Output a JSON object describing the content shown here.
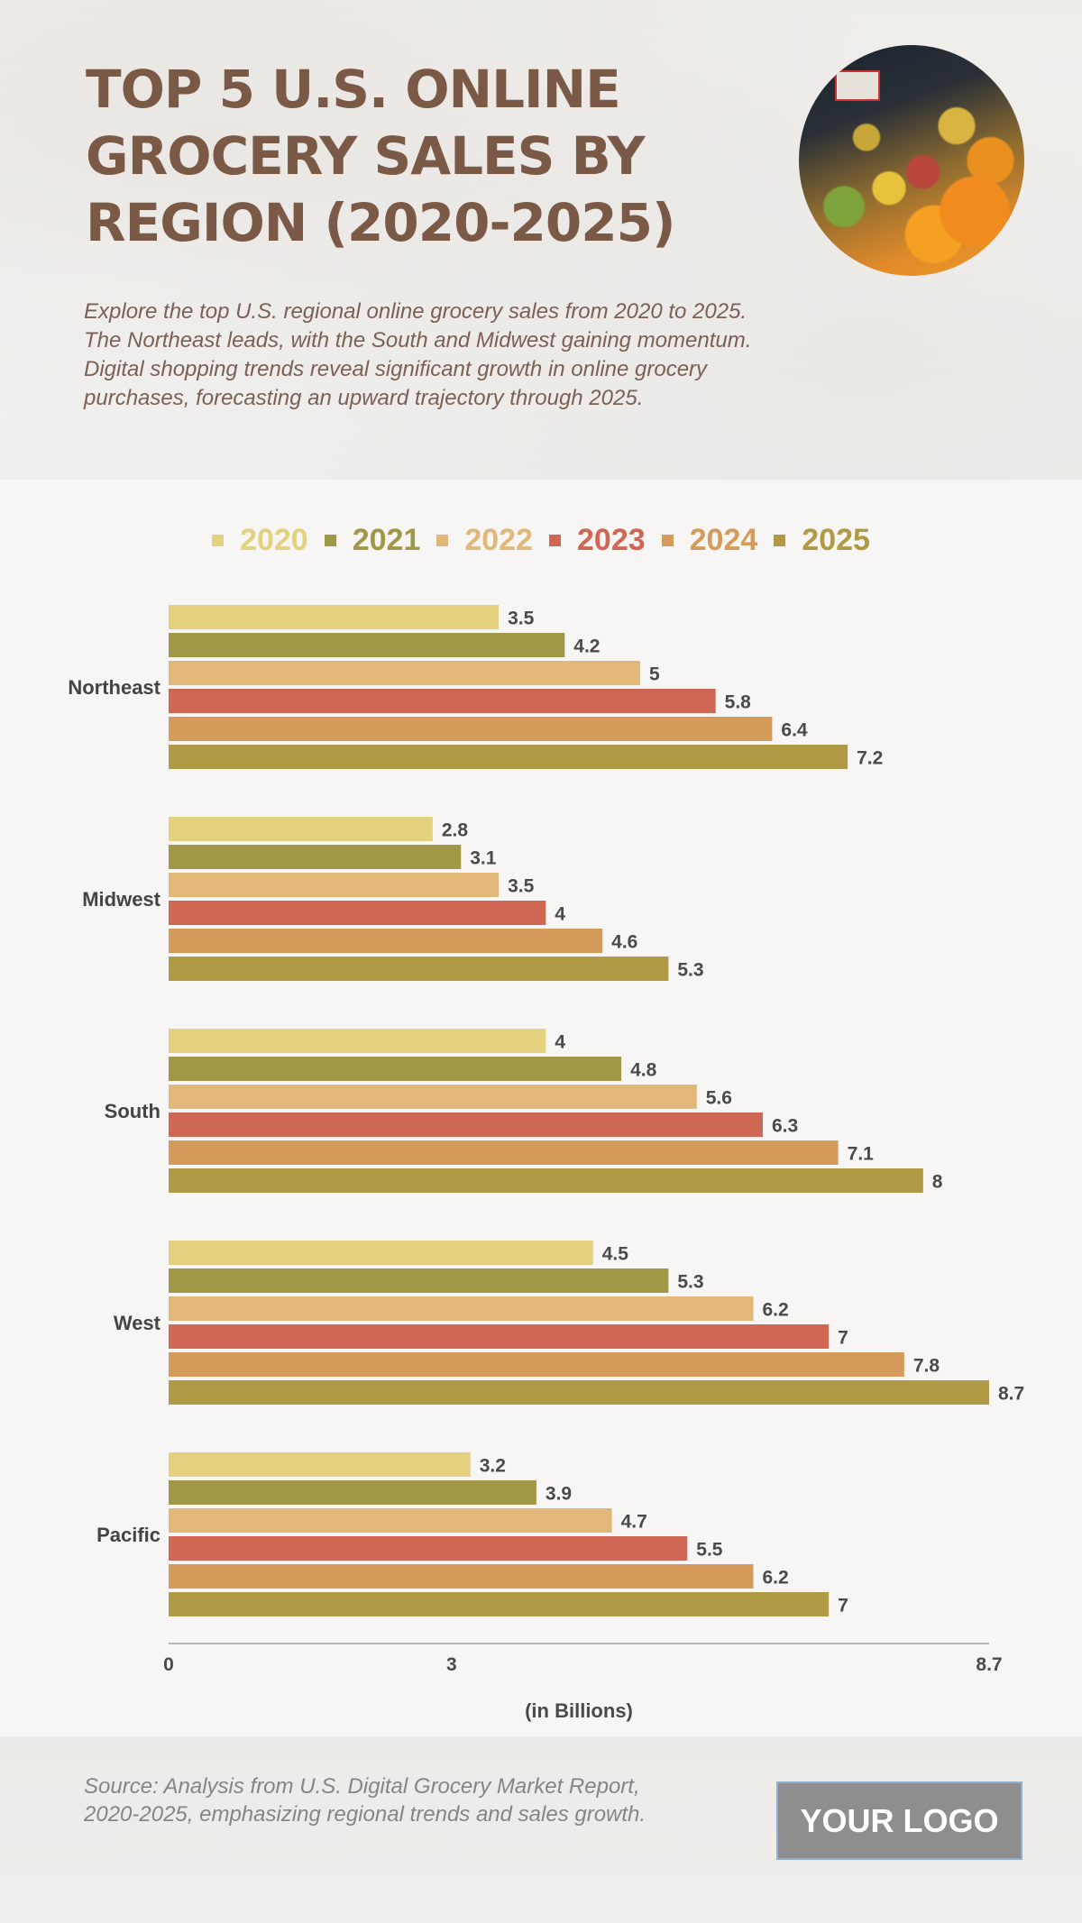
{
  "header": {
    "title": "TOP 5 U.S. ONLINE GROCERY SALES BY REGION (2020-2025)",
    "subtitle": "Explore the top U.S. regional online grocery sales from 2020 to 2025. The Northeast leads, with the South and Midwest gaining momentum. Digital shopping trends reveal significant growth in online grocery purchases, forecasting an upward trajectory through 2025.",
    "image": "grocery-produce-photo"
  },
  "footer": {
    "source": "Source: Analysis from U.S. Digital Grocery Market Report, 2020-2025, emphasizing regional trends and sales growth.",
    "logo": "YOUR LOGO"
  },
  "chart_data": {
    "type": "bar",
    "orientation": "horizontal",
    "title": "TOP 5 U.S. ONLINE GROCERY SALES BY REGION (2020-2025)",
    "xlabel": "(in Billions)",
    "ylabel": "",
    "categories": [
      "Northeast",
      "Midwest",
      "South",
      "West",
      "Pacific"
    ],
    "series": [
      {
        "name": "2020",
        "color": "#e3d17f",
        "values": [
          3.5,
          2.8,
          4.0,
          4.5,
          3.2
        ]
      },
      {
        "name": "2021",
        "color": "#a09846",
        "values": [
          4.2,
          3.1,
          4.8,
          5.3,
          3.9
        ]
      },
      {
        "name": "2022",
        "color": "#e2b87a",
        "values": [
          5.0,
          3.5,
          5.6,
          6.2,
          4.7
        ]
      },
      {
        "name": "2023",
        "color": "#cf6754",
        "values": [
          5.8,
          4.0,
          6.3,
          7.0,
          5.5
        ]
      },
      {
        "name": "2024",
        "color": "#d49b5a",
        "values": [
          6.4,
          4.6,
          7.1,
          7.8,
          6.2
        ]
      },
      {
        "name": "2025",
        "color": "#b19a45",
        "values": [
          7.2,
          5.3,
          8.0,
          8.7,
          7.0
        ]
      }
    ],
    "xlim": [
      0,
      8.7
    ],
    "xticks": [
      "0",
      "3",
      "8.7"
    ],
    "legend_position": "top-center",
    "grid": false
  }
}
